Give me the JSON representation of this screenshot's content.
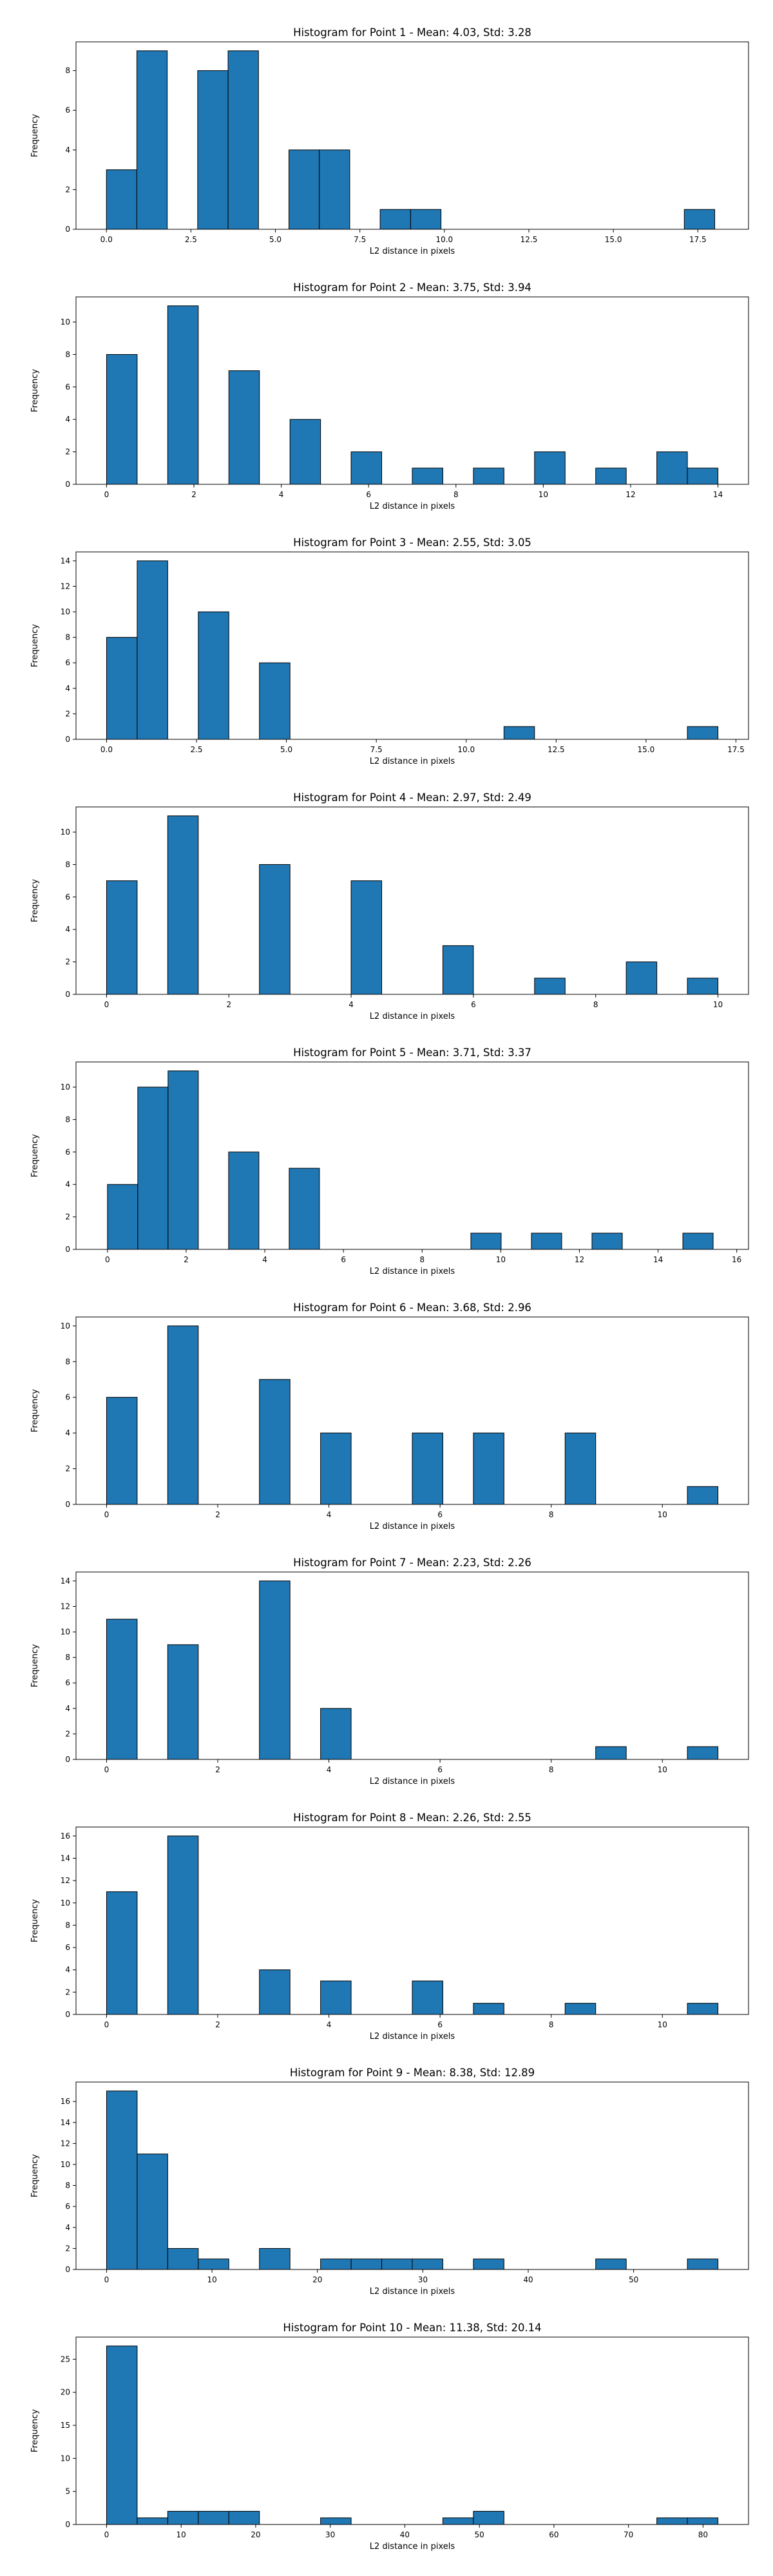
{
  "chart_data": [
    {
      "type": "bar",
      "title": "Histogram for Point 1 - Mean: 4.03, Std: 3.28",
      "xlabel": "L2 distance in pixels",
      "ylabel": "Frequency",
      "xlim": [
        -0.9,
        19.0
      ],
      "ylim": [
        0,
        9.45
      ],
      "xticks": [
        0.0,
        2.5,
        5.0,
        7.5,
        10.0,
        12.5,
        15.0,
        17.5
      ],
      "xticklabels": [
        "0.0",
        "2.5",
        "5.0",
        "7.5",
        "10.0",
        "12.5",
        "15.0",
        "17.5"
      ],
      "yticks": [
        0,
        2,
        4,
        6,
        8
      ],
      "yticklabels": [
        "0",
        "2",
        "4",
        "6",
        "8"
      ],
      "bins": [
        [
          0.0,
          0.9,
          3
        ],
        [
          0.9,
          1.8,
          9
        ],
        [
          2.7,
          3.6,
          8
        ],
        [
          3.6,
          4.5,
          9
        ],
        [
          5.4,
          6.3,
          4
        ],
        [
          6.3,
          7.2,
          4
        ],
        [
          8.1,
          9.0,
          1
        ],
        [
          9.0,
          9.9,
          1
        ],
        [
          17.1,
          18.0,
          1
        ]
      ]
    },
    {
      "type": "bar",
      "title": "Histogram for Point 2 - Mean: 3.75, Std: 3.94",
      "xlabel": "L2 distance in pixels",
      "ylabel": "Frequency",
      "xlim": [
        -0.7,
        14.7
      ],
      "ylim": [
        0,
        11.55
      ],
      "xticks": [
        0,
        2,
        4,
        6,
        8,
        10,
        12,
        14
      ],
      "xticklabels": [
        "0",
        "2",
        "4",
        "6",
        "8",
        "10",
        "12",
        "14"
      ],
      "yticks": [
        0,
        2,
        4,
        6,
        8,
        10
      ],
      "yticklabels": [
        "0",
        "2",
        "4",
        "6",
        "8",
        "10"
      ],
      "bins": [
        [
          0.0,
          0.7,
          8
        ],
        [
          1.4,
          2.1,
          11
        ],
        [
          2.8,
          3.5,
          7
        ],
        [
          4.2,
          4.9,
          4
        ],
        [
          5.6,
          6.3,
          2
        ],
        [
          7.0,
          7.7,
          1
        ],
        [
          8.4,
          9.1,
          1
        ],
        [
          9.8,
          10.5,
          2
        ],
        [
          11.2,
          11.9,
          1
        ],
        [
          12.6,
          13.3,
          2
        ],
        [
          13.3,
          14.0,
          1
        ]
      ]
    },
    {
      "type": "bar",
      "title": "Histogram for Point 3 - Mean: 2.55, Std: 3.05",
      "xlabel": "L2 distance in pixels",
      "ylabel": "Frequency",
      "xlim": [
        -0.85,
        17.85
      ],
      "ylim": [
        0,
        14.7
      ],
      "xticks": [
        0.0,
        2.5,
        5.0,
        7.5,
        10.0,
        12.5,
        15.0,
        17.5
      ],
      "xticklabels": [
        "0.0",
        "2.5",
        "5.0",
        "7.5",
        "10.0",
        "12.5",
        "15.0",
        "17.5"
      ],
      "yticks": [
        0,
        2,
        4,
        6,
        8,
        10,
        12,
        14
      ],
      "yticklabels": [
        "0",
        "2",
        "4",
        "6",
        "8",
        "10",
        "12",
        "14"
      ],
      "bins": [
        [
          0.0,
          0.85,
          8
        ],
        [
          0.85,
          1.7,
          14
        ],
        [
          2.55,
          3.4,
          10
        ],
        [
          4.25,
          5.1,
          6
        ],
        [
          11.05,
          11.9,
          1
        ],
        [
          16.15,
          17.0,
          1
        ]
      ]
    },
    {
      "type": "bar",
      "title": "Histogram for Point 4 - Mean: 2.97, Std: 2.49",
      "xlabel": "L2 distance in pixels",
      "ylabel": "Frequency",
      "xlim": [
        -0.5,
        10.5
      ],
      "ylim": [
        0,
        11.55
      ],
      "xticks": [
        0,
        2,
        4,
        6,
        8,
        10
      ],
      "xticklabels": [
        "0",
        "2",
        "4",
        "6",
        "8",
        "10"
      ],
      "yticks": [
        0,
        2,
        4,
        6,
        8,
        10
      ],
      "yticklabels": [
        "0",
        "2",
        "4",
        "6",
        "8",
        "10"
      ],
      "bins": [
        [
          0.0,
          0.5,
          7
        ],
        [
          1.0,
          1.5,
          11
        ],
        [
          2.5,
          3.0,
          8
        ],
        [
          4.0,
          4.5,
          7
        ],
        [
          5.5,
          6.0,
          3
        ],
        [
          7.0,
          7.5,
          1
        ],
        [
          8.5,
          9.0,
          2
        ],
        [
          9.5,
          10.0,
          1
        ]
      ]
    },
    {
      "type": "bar",
      "title": "Histogram for Point 5 - Mean: 3.71, Std: 3.37",
      "xlabel": "L2 distance in pixels",
      "ylabel": "Frequency",
      "xlim": [
        -0.8,
        16.3
      ],
      "ylim": [
        0,
        11.55
      ],
      "xticks": [
        0,
        2,
        4,
        6,
        8,
        10,
        12,
        14,
        16
      ],
      "xticklabels": [
        "0",
        "2",
        "4",
        "6",
        "8",
        "10",
        "12",
        "14",
        "16"
      ],
      "yticks": [
        0,
        2,
        4,
        6,
        8,
        10
      ],
      "yticklabels": [
        "0",
        "2",
        "4",
        "6",
        "8",
        "10"
      ],
      "bins": [
        [
          0.0,
          0.77,
          4
        ],
        [
          0.77,
          1.54,
          10
        ],
        [
          1.54,
          2.31,
          11
        ],
        [
          3.08,
          3.85,
          6
        ],
        [
          4.62,
          5.39,
          5
        ],
        [
          9.24,
          10.01,
          1
        ],
        [
          10.78,
          11.55,
          1
        ],
        [
          12.32,
          13.09,
          1
        ],
        [
          14.63,
          15.4,
          1
        ]
      ]
    },
    {
      "type": "bar",
      "title": "Histogram for Point 6 - Mean: 3.68, Std: 2.96",
      "xlabel": "L2 distance in pixels",
      "ylabel": "Frequency",
      "xlim": [
        -0.55,
        11.55
      ],
      "ylim": [
        0,
        10.5
      ],
      "xticks": [
        0,
        2,
        4,
        6,
        8,
        10
      ],
      "xticklabels": [
        "0",
        "2",
        "4",
        "6",
        "8",
        "10"
      ],
      "yticks": [
        0,
        2,
        4,
        6,
        8,
        10
      ],
      "yticklabels": [
        "0",
        "2",
        "4",
        "6",
        "8",
        "10"
      ],
      "bins": [
        [
          0.0,
          0.55,
          6
        ],
        [
          1.1,
          1.65,
          10
        ],
        [
          2.75,
          3.3,
          7
        ],
        [
          3.85,
          4.4,
          4
        ],
        [
          5.5,
          6.05,
          4
        ],
        [
          6.6,
          7.15,
          4
        ],
        [
          8.25,
          8.8,
          4
        ],
        [
          10.45,
          11.0,
          1
        ]
      ]
    },
    {
      "type": "bar",
      "title": "Histogram for Point 7 - Mean: 2.23, Std: 2.26",
      "xlabel": "L2 distance in pixels",
      "ylabel": "Frequency",
      "xlim": [
        -0.55,
        11.55
      ],
      "ylim": [
        0,
        14.7
      ],
      "xticks": [
        0,
        2,
        4,
        6,
        8,
        10
      ],
      "xticklabels": [
        "0",
        "2",
        "4",
        "6",
        "8",
        "10"
      ],
      "yticks": [
        0,
        2,
        4,
        6,
        8,
        10,
        12,
        14
      ],
      "yticklabels": [
        "0",
        "2",
        "4",
        "6",
        "8",
        "10",
        "12",
        "14"
      ],
      "bins": [
        [
          0.0,
          0.55,
          11
        ],
        [
          1.1,
          1.65,
          9
        ],
        [
          2.75,
          3.3,
          14
        ],
        [
          3.85,
          4.4,
          4
        ],
        [
          8.8,
          9.35,
          1
        ],
        [
          10.45,
          11.0,
          1
        ]
      ]
    },
    {
      "type": "bar",
      "title": "Histogram for Point 8 - Mean: 2.26, Std: 2.55",
      "xlabel": "L2 distance in pixels",
      "ylabel": "Frequency",
      "xlim": [
        -0.55,
        11.55
      ],
      "ylim": [
        0,
        16.8
      ],
      "xticks": [
        0,
        2,
        4,
        6,
        8,
        10
      ],
      "xticklabels": [
        "0",
        "2",
        "4",
        "6",
        "8",
        "10"
      ],
      "yticks": [
        0,
        2,
        4,
        6,
        8,
        10,
        12,
        14,
        16
      ],
      "yticklabels": [
        "0",
        "2",
        "4",
        "6",
        "8",
        "10",
        "12",
        "14",
        "16"
      ],
      "bins": [
        [
          0.0,
          0.55,
          11
        ],
        [
          1.1,
          1.65,
          16
        ],
        [
          2.75,
          3.3,
          4
        ],
        [
          3.85,
          4.4,
          3
        ],
        [
          5.5,
          6.05,
          3
        ],
        [
          6.6,
          7.15,
          1
        ],
        [
          8.25,
          8.8,
          1
        ],
        [
          10.45,
          11.0,
          1
        ]
      ]
    },
    {
      "type": "bar",
      "title": "Histogram for Point 9 - Mean: 8.38, Std: 12.89",
      "xlabel": "L2 distance in pixels",
      "ylabel": "Frequency",
      "xlim": [
        -2.9,
        60.9
      ],
      "ylim": [
        0,
        17.85
      ],
      "xticks": [
        0,
        10,
        20,
        30,
        40,
        50
      ],
      "xticklabels": [
        "0",
        "10",
        "20",
        "30",
        "40",
        "50"
      ],
      "yticks": [
        0,
        2,
        4,
        6,
        8,
        10,
        12,
        14,
        16
      ],
      "yticklabels": [
        "0",
        "2",
        "4",
        "6",
        "8",
        "10",
        "12",
        "14",
        "16"
      ],
      "bins": [
        [
          0.0,
          2.9,
          17
        ],
        [
          2.9,
          5.8,
          11
        ],
        [
          5.8,
          8.7,
          2
        ],
        [
          8.7,
          11.6,
          1
        ],
        [
          14.5,
          17.4,
          2
        ],
        [
          20.3,
          23.2,
          1
        ],
        [
          23.2,
          26.1,
          1
        ],
        [
          26.1,
          29.0,
          1
        ],
        [
          29.0,
          31.9,
          1
        ],
        [
          34.8,
          37.7,
          1
        ],
        [
          46.4,
          49.3,
          1
        ],
        [
          55.1,
          58.0,
          1
        ]
      ]
    },
    {
      "type": "bar",
      "title": "Histogram for Point 10 - Mean: 11.38, Std: 20.14",
      "xlabel": "L2 distance in pixels",
      "ylabel": "Frequency",
      "xlim": [
        -4.1,
        86.1
      ],
      "ylim": [
        0,
        28.35
      ],
      "xticks": [
        0,
        10,
        20,
        30,
        40,
        50,
        60,
        70,
        80
      ],
      "xticklabels": [
        "0",
        "10",
        "20",
        "30",
        "40",
        "50",
        "60",
        "70",
        "80"
      ],
      "yticks": [
        0,
        5,
        10,
        15,
        20,
        25
      ],
      "yticklabels": [
        "0",
        "5",
        "10",
        "15",
        "20",
        "25"
      ],
      "bins": [
        [
          0.0,
          4.1,
          27
        ],
        [
          4.1,
          8.2,
          1
        ],
        [
          8.2,
          12.3,
          2
        ],
        [
          12.3,
          16.4,
          2
        ],
        [
          16.4,
          20.5,
          2
        ],
        [
          28.7,
          32.8,
          1
        ],
        [
          45.1,
          49.2,
          1
        ],
        [
          49.2,
          53.3,
          2
        ],
        [
          73.8,
          77.9,
          1
        ],
        [
          77.9,
          82.0,
          1
        ]
      ]
    }
  ]
}
